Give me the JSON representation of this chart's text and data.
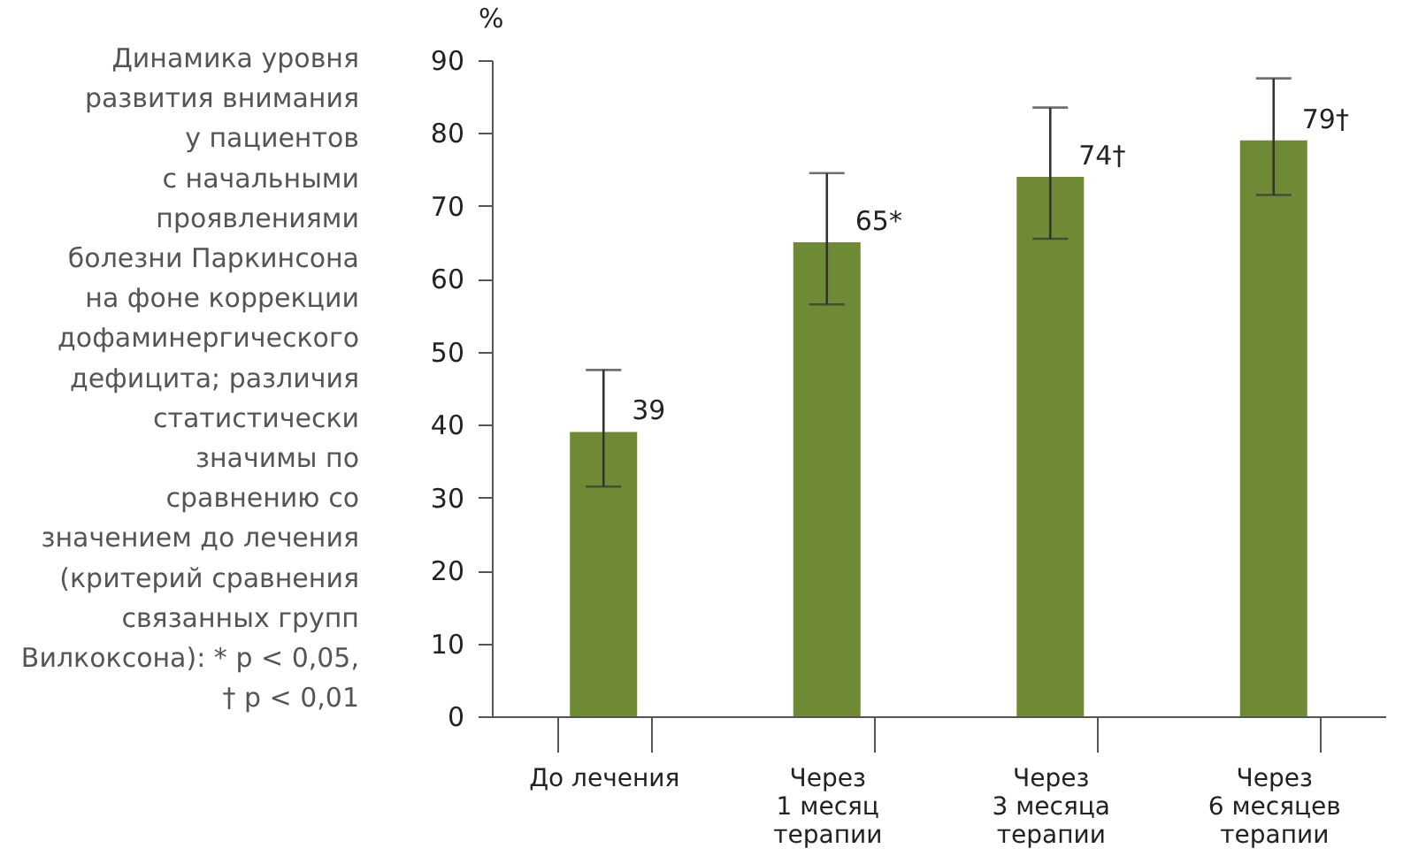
{
  "chart_data": {
    "type": "bar",
    "ylabel": "%",
    "categories": [
      "До лечения",
      "Через\n1 месяц\nтерапии",
      "Через\n3 месяца\nтерапии",
      "Через\n6 месяцев\nтерапии"
    ],
    "values": [
      39,
      65,
      74,
      79
    ],
    "errors": [
      [
        31.5,
        47.5
      ],
      [
        56.5,
        74.5
      ],
      [
        65.5,
        83.5
      ],
      [
        71.5,
        87.5
      ]
    ],
    "value_labels": [
      "39",
      "65*",
      "74†",
      "79†"
    ],
    "color": "#6f8a35",
    "ylim": [
      0,
      90
    ],
    "yticks": [
      0,
      10,
      20,
      30,
      40,
      50,
      60,
      70,
      80,
      90
    ],
    "grid": false,
    "annotations": [
      "Динамика уровня\nразвития внимания\nу пациентов\nс начальными\nпроявлениями\nболезни Паркинсона\nна фоне коррекции\nдофаминергического\nдефицита; различия\nстатистически\nзначимы по\nсравнению со\nзначением до лечения\n(критерий сравнения\nсвязанных групп\nВилкоксона): * p < 0,05,\n† p < 0,01"
    ]
  }
}
